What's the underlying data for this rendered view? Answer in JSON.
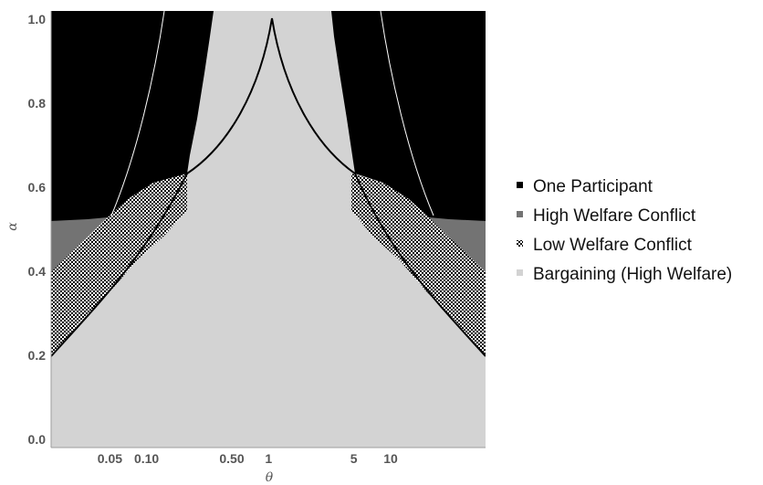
{
  "chart_data": {
    "type": "area",
    "xlabel": "θ",
    "ylabel": "α",
    "x_scale": "log",
    "xlim": [
      0.0165,
      60
    ],
    "ylim": [
      -0.02,
      1.02
    ],
    "x_ticks": [
      {
        "value": 0.05,
        "label": "0.05"
      },
      {
        "value": 0.1,
        "label": "0.10"
      },
      {
        "value": 0.5,
        "label": "0.50"
      },
      {
        "value": 1,
        "label": "1"
      },
      {
        "value": 5,
        "label": "5"
      },
      {
        "value": 10,
        "label": "10"
      }
    ],
    "y_ticks": [
      {
        "value": 0.0,
        "label": "0.0"
      },
      {
        "value": 0.2,
        "label": "0.2"
      },
      {
        "value": 0.4,
        "label": "0.4"
      },
      {
        "value": 0.6,
        "label": "0.6"
      },
      {
        "value": 0.8,
        "label": "0.8"
      },
      {
        "value": 1.0,
        "label": "1.0"
      }
    ],
    "grid": false,
    "legend_position": "right",
    "series": [
      {
        "name": "One Participant",
        "color": "#000000",
        "pattern": "solid"
      },
      {
        "name": "High Welfare Conflict",
        "color": "#737373",
        "pattern": "solid"
      },
      {
        "name": "Low Welfare Conflict",
        "color": "#000000",
        "pattern": "checkerboard"
      },
      {
        "name": "Bargaining (High Welfare)",
        "color": "#d3d3d3",
        "pattern": "solid"
      }
    ],
    "boundaries": {
      "bargaining_alpha_max": [
        {
          "theta": 0.0165,
          "alpha": 0.19
        },
        {
          "theta": 0.05,
          "alpha": 0.32
        },
        {
          "theta": 0.1,
          "alpha": 0.43
        },
        {
          "theta": 0.2,
          "alpha": 0.58
        },
        {
          "theta": 0.3,
          "alpha": 0.74
        },
        {
          "theta": 0.35,
          "alpha": 1.0
        },
        {
          "theta": 2.9,
          "alpha": 1.0
        },
        {
          "theta": 3.4,
          "alpha": 0.74
        },
        {
          "theta": 5,
          "alpha": 0.58
        },
        {
          "theta": 10,
          "alpha": 0.43
        },
        {
          "theta": 20,
          "alpha": 0.32
        },
        {
          "theta": 60,
          "alpha": 0.19
        }
      ],
      "one_participant_alpha_min": [
        {
          "theta": 0.0165,
          "alpha": 0.51
        },
        {
          "theta": 0.05,
          "alpha": 0.53
        },
        {
          "theta": 0.1,
          "alpha": 0.56
        },
        {
          "theta": 0.2,
          "alpha": 0.6
        },
        {
          "theta": 5,
          "alpha": 0.6
        },
        {
          "theta": 10,
          "alpha": 0.56
        },
        {
          "theta": 20,
          "alpha": 0.53
        },
        {
          "theta": 60,
          "alpha": 0.51
        }
      ],
      "high_conflict_alpha_max": [
        {
          "theta": 0.0165,
          "alpha": 0.39
        },
        {
          "theta": 0.05,
          "alpha": 0.53
        },
        {
          "theta": 20,
          "alpha": 0.53
        },
        {
          "theta": 60,
          "alpha": 0.39
        }
      ]
    }
  },
  "legend": {
    "items": [
      {
        "label": "One Participant",
        "swatch": "#000000",
        "pattern": "solid"
      },
      {
        "label": "High Welfare Conflict",
        "swatch": "#737373",
        "pattern": "solid"
      },
      {
        "label": "Low Welfare Conflict",
        "swatch": "#000000",
        "pattern": "checkerboard"
      },
      {
        "label": "Bargaining (High Welfare)",
        "swatch": "#d3d3d3",
        "pattern": "solid"
      }
    ]
  }
}
